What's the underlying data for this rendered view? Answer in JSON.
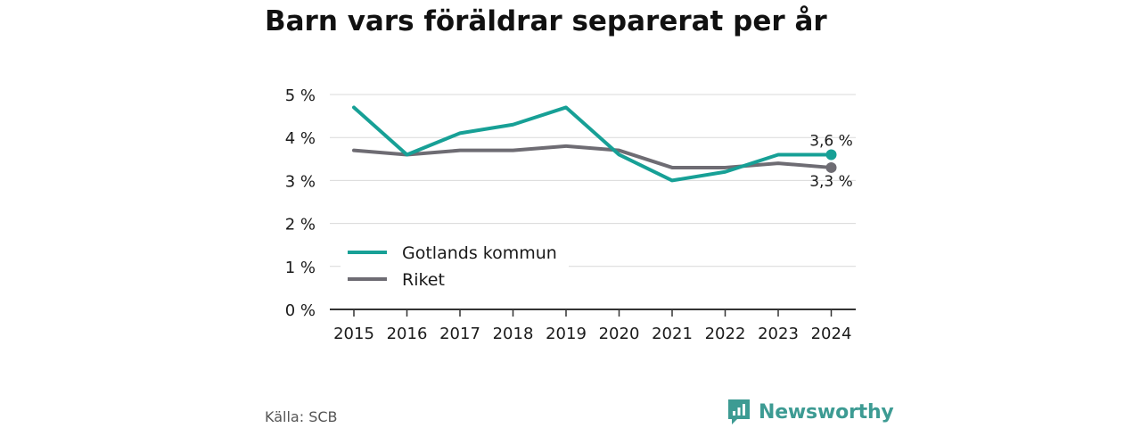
{
  "header": {
    "title": "Barn vars föräldrar separerat per år"
  },
  "footer": {
    "source": "Källa: SCB",
    "brand": "Newsworthy",
    "brand_color": "#3d9b93"
  },
  "chart_data": {
    "type": "line",
    "title": "Barn vars föräldrar separerat per år",
    "xlabel": "",
    "ylabel": "",
    "x": [
      "2015",
      "2016",
      "2017",
      "2018",
      "2019",
      "2020",
      "2021",
      "2022",
      "2023",
      "2024"
    ],
    "ylim": [
      0,
      5
    ],
    "yticks": [
      0,
      1,
      2,
      3,
      4,
      5
    ],
    "ytick_labels": [
      "0 %",
      "1 %",
      "2 %",
      "3 %",
      "4 %",
      "5 %"
    ],
    "grid": true,
    "legend_position": "bottom-left",
    "series": [
      {
        "name": "Gotlands kommun",
        "color": "#17a096",
        "values": [
          4.7,
          3.6,
          4.1,
          4.3,
          4.7,
          3.6,
          3.0,
          3.2,
          3.6,
          3.6
        ],
        "end_label": "3,6 %"
      },
      {
        "name": "Riket",
        "color": "#6e6c73",
        "values": [
          3.7,
          3.6,
          3.7,
          3.7,
          3.8,
          3.7,
          3.3,
          3.3,
          3.4,
          3.3
        ],
        "end_label": "3,3 %"
      }
    ]
  }
}
